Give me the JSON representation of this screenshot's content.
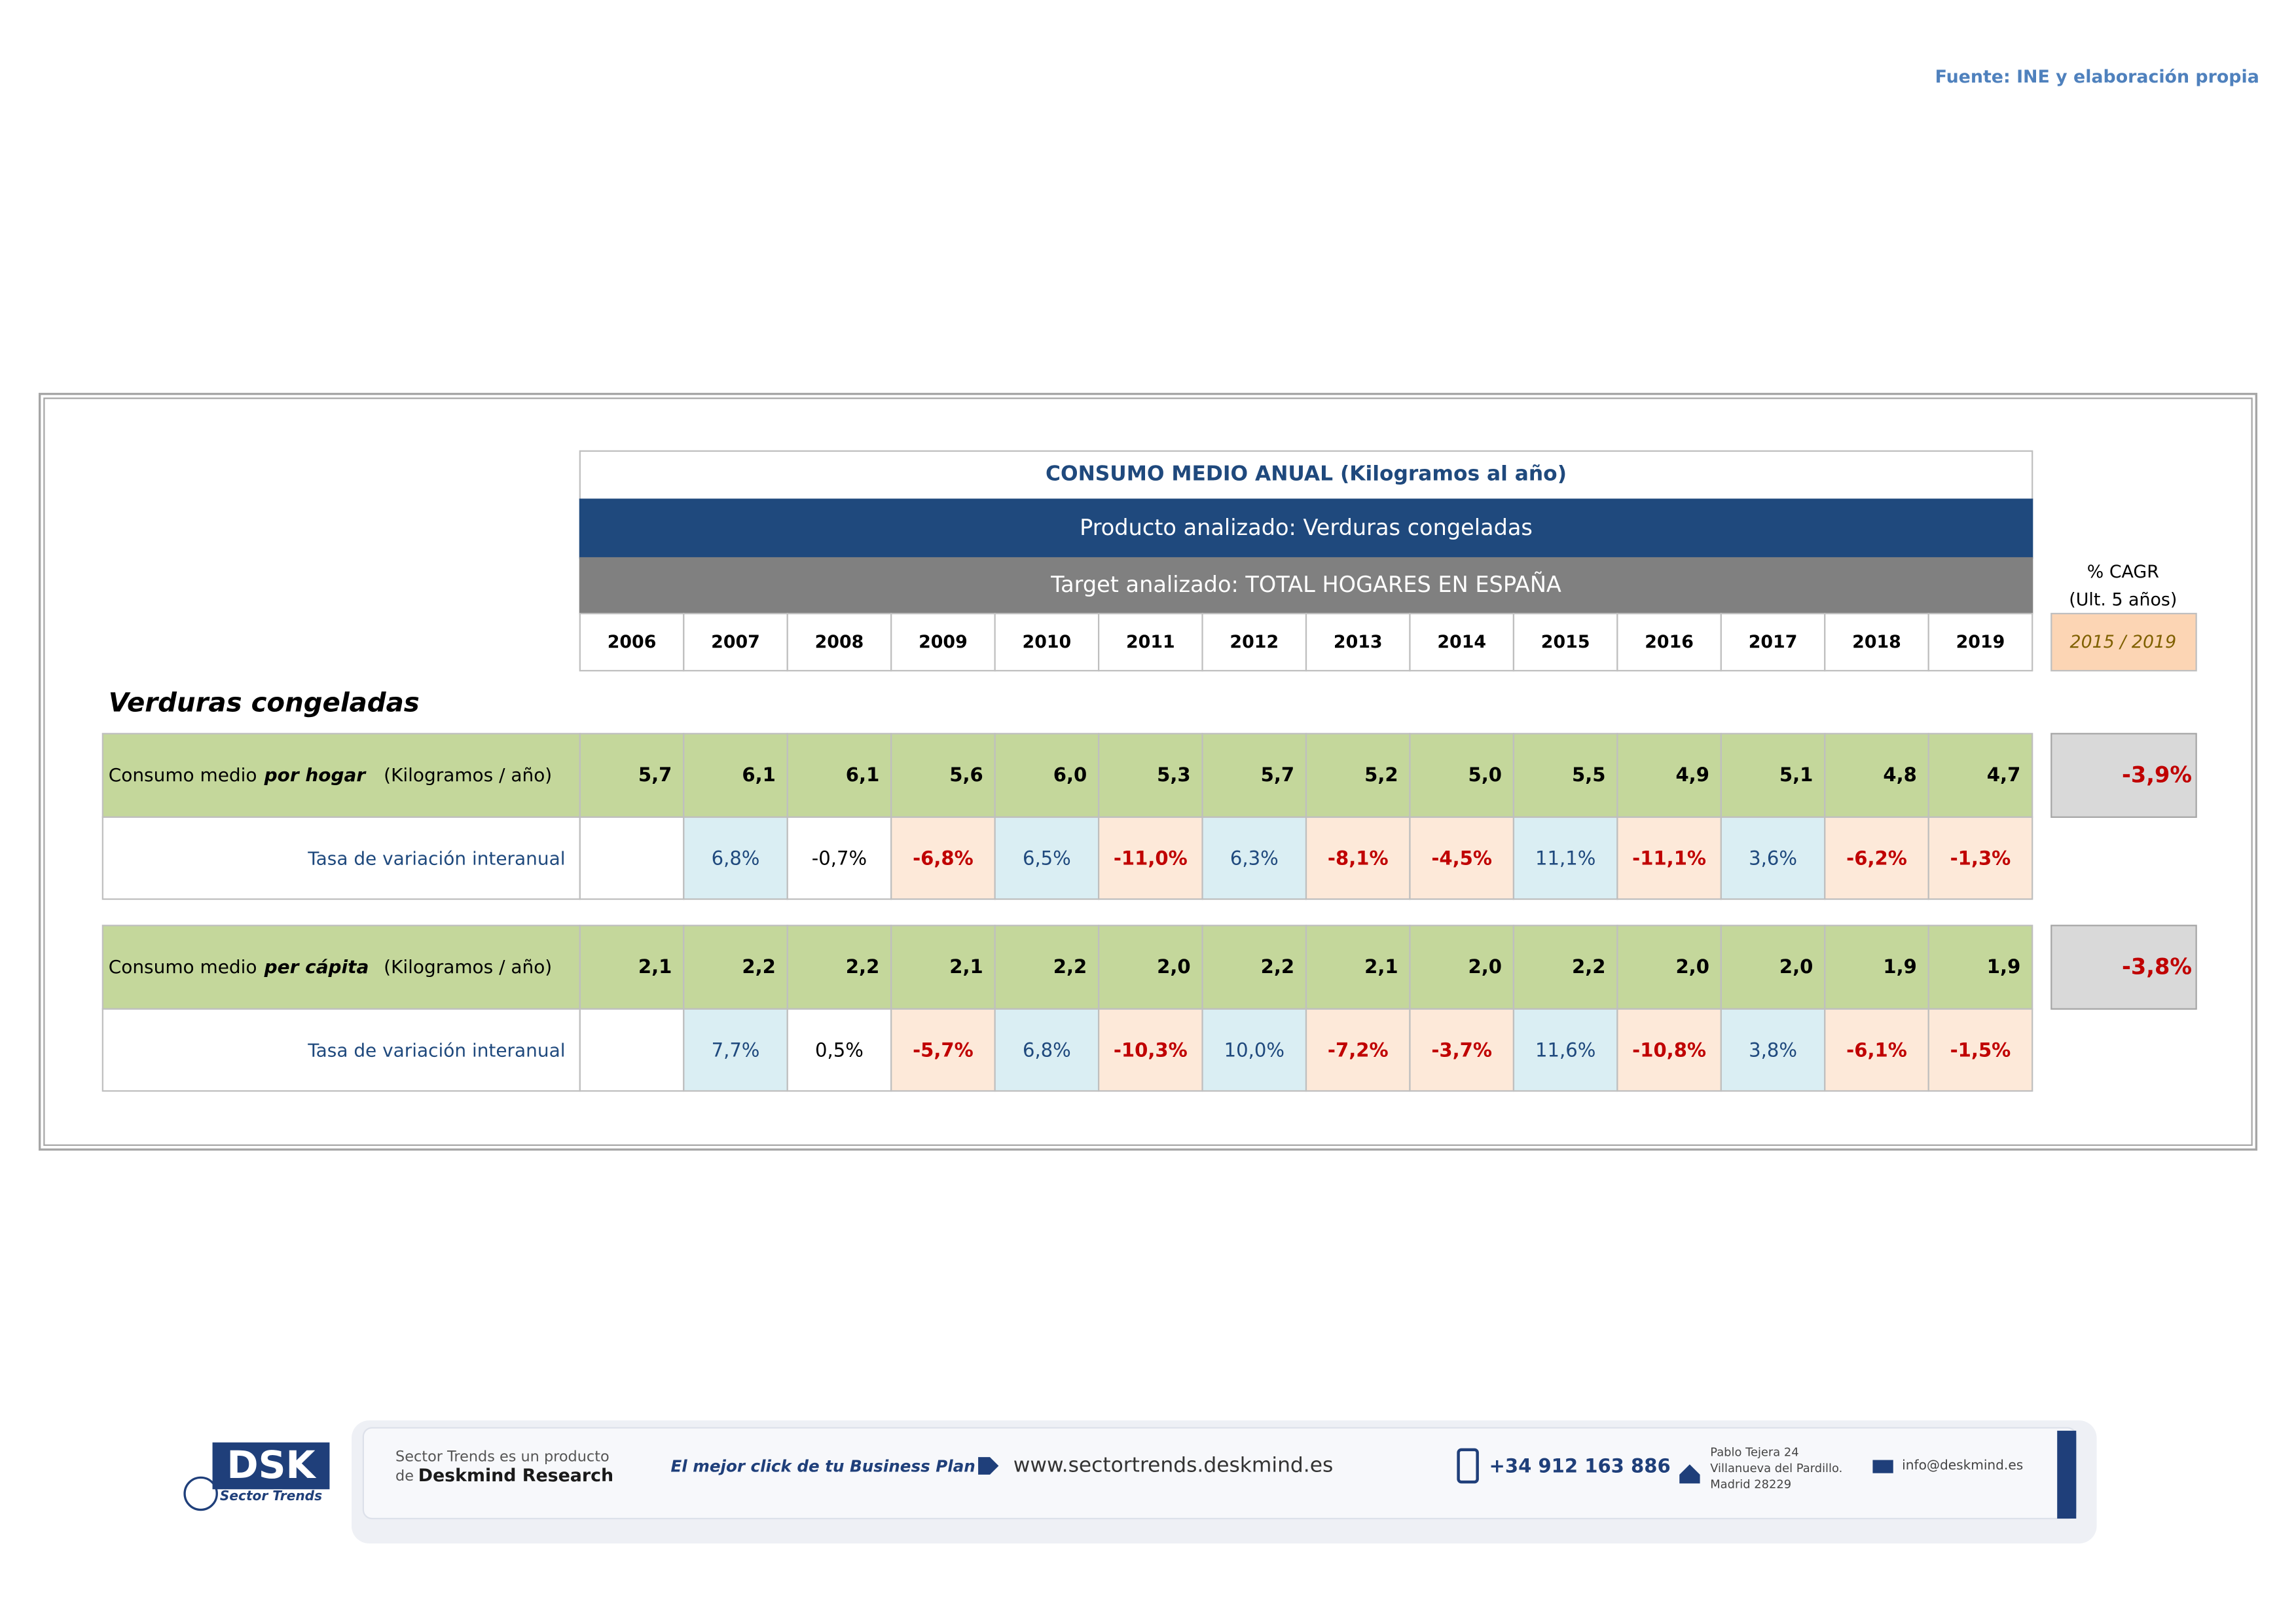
{
  "source": "Fuente: INE y elaboración propia",
  "table": {
    "title": "CONSUMO MEDIO ANUAL (Kilogramos al año)",
    "product": "Producto analizado: Verduras congeladas",
    "target": "Target analizado: TOTAL HOGARES EN ESPAÑA",
    "years": [
      "2006",
      "2007",
      "2008",
      "2009",
      "2010",
      "2011",
      "2012",
      "2013",
      "2014",
      "2015",
      "2016",
      "2017",
      "2018",
      "2019"
    ],
    "cagr_header": [
      "% CAGR",
      "(Ult. 5 años)"
    ],
    "cagr_period": "2015 / 2019",
    "section": "Verduras congeladas",
    "groups": [
      {
        "label": "Consumo medio",
        "label_em": "por hogar",
        "unit": "(Kilogramos / año)",
        "values": [
          "5,7",
          "6,1",
          "6,1",
          "5,6",
          "6,0",
          "5,3",
          "5,7",
          "5,2",
          "5,0",
          "5,5",
          "4,9",
          "5,1",
          "4,8",
          "4,7"
        ],
        "cagr": "-3,9%",
        "variation_label": "Tasa de variación interanual",
        "variation": [
          null,
          "6,8%",
          "-0,7%",
          "-6,8%",
          "6,5%",
          "-11,0%",
          "6,3%",
          "-8,1%",
          "-4,5%",
          "11,1%",
          "-11,1%",
          "3,6%",
          "-6,2%",
          "-1,3%"
        ]
      },
      {
        "label": "Consumo medio",
        "label_em": "per cápita",
        "unit": "(Kilogramos / año)",
        "values": [
          "2,1",
          "2,2",
          "2,2",
          "2,1",
          "2,2",
          "2,0",
          "2,2",
          "2,1",
          "2,0",
          "2,2",
          "2,0",
          "2,0",
          "1,9",
          "1,9"
        ],
        "cagr": "-3,8%",
        "variation_label": "Tasa de variación interanual",
        "variation": [
          null,
          "7,7%",
          "0,5%",
          "-5,7%",
          "6,8%",
          "-10,3%",
          "10,0%",
          "-7,2%",
          "-3,7%",
          "11,6%",
          "-10,8%",
          "3,8%",
          "-6,1%",
          "-1,5%"
        ]
      }
    ]
  },
  "footer": {
    "logo": "DSK",
    "logo_sub": "Sector Trends",
    "product_line1": "Sector Trends es un producto",
    "product_line2_pre": "de",
    "product_line2": "Deskmind Research",
    "slogan": "El mejor click de tu Business Plan",
    "web": "www.sectortrends.deskmind.es",
    "phone": "+34 912 163 886",
    "address": [
      "Pablo Tejera 24",
      "Villanueva del Pardillo.",
      "Madrid 28229"
    ],
    "email": "info@deskmind.es"
  }
}
